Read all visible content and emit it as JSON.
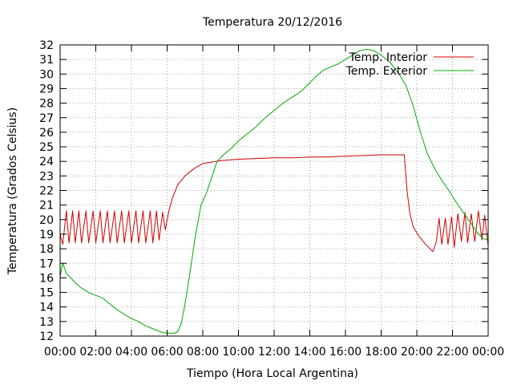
{
  "chart_data": {
    "type": "line",
    "title": "Temperatura 20/12/2016",
    "xlabel": "Tiempo (Hora Local Argentina)",
    "ylabel": "Temperatura (Grados Celsius)",
    "xlim": [
      0,
      24
    ],
    "ylim": [
      12,
      32
    ],
    "x_ticks": [
      "00:00",
      "02:00",
      "04:00",
      "06:00",
      "08:00",
      "10:00",
      "12:00",
      "14:00",
      "16:00",
      "18:00",
      "20:00",
      "22:00",
      "00:00"
    ],
    "y_ticks": [
      12,
      13,
      14,
      15,
      16,
      17,
      18,
      19,
      20,
      21,
      22,
      23,
      24,
      25,
      26,
      27,
      28,
      29,
      30,
      31,
      32
    ],
    "grid": true,
    "legend_position": "top-right",
    "series": [
      {
        "name": "Temp. Interior",
        "color": "#cc0000",
        "points": [
          [
            0.0,
            19.0
          ],
          [
            0.15,
            18.3
          ],
          [
            0.35,
            20.6
          ],
          [
            0.5,
            18.4
          ],
          [
            0.7,
            20.6
          ],
          [
            0.85,
            18.4
          ],
          [
            1.05,
            20.6
          ],
          [
            1.2,
            18.4
          ],
          [
            1.45,
            20.6
          ],
          [
            1.6,
            18.4
          ],
          [
            1.85,
            20.6
          ],
          [
            2.0,
            18.4
          ],
          [
            2.25,
            20.6
          ],
          [
            2.4,
            18.4
          ],
          [
            2.65,
            20.6
          ],
          [
            2.8,
            18.4
          ],
          [
            3.05,
            20.6
          ],
          [
            3.2,
            18.4
          ],
          [
            3.45,
            20.6
          ],
          [
            3.6,
            18.4
          ],
          [
            3.85,
            20.6
          ],
          [
            4.0,
            18.4
          ],
          [
            4.25,
            20.6
          ],
          [
            4.4,
            18.4
          ],
          [
            4.65,
            20.6
          ],
          [
            4.8,
            18.4
          ],
          [
            5.05,
            20.6
          ],
          [
            5.2,
            18.4
          ],
          [
            5.4,
            20.6
          ],
          [
            5.55,
            18.6
          ],
          [
            5.75,
            20.5
          ],
          [
            5.9,
            19.3
          ],
          [
            6.1,
            20.6
          ],
          [
            6.3,
            21.5
          ],
          [
            6.6,
            22.4
          ],
          [
            7.0,
            23.0
          ],
          [
            7.5,
            23.5
          ],
          [
            8.0,
            23.85
          ],
          [
            9.0,
            24.05
          ],
          [
            10.0,
            24.15
          ],
          [
            11.0,
            24.2
          ],
          [
            12.0,
            24.25
          ],
          [
            13.0,
            24.25
          ],
          [
            14.0,
            24.3
          ],
          [
            15.0,
            24.3
          ],
          [
            16.0,
            24.35
          ],
          [
            17.0,
            24.4
          ],
          [
            18.0,
            24.45
          ],
          [
            19.3,
            24.45
          ],
          [
            19.45,
            22.0
          ],
          [
            19.6,
            20.5
          ],
          [
            19.8,
            19.5
          ],
          [
            20.1,
            18.9
          ],
          [
            20.5,
            18.3
          ],
          [
            20.9,
            17.8
          ],
          [
            21.1,
            18.5
          ],
          [
            21.25,
            20.1
          ],
          [
            21.4,
            18.3
          ],
          [
            21.6,
            20.1
          ],
          [
            21.75,
            18.3
          ],
          [
            21.95,
            20.2
          ],
          [
            22.1,
            18.1
          ],
          [
            22.3,
            20.4
          ],
          [
            22.5,
            18.5
          ],
          [
            22.7,
            20.5
          ],
          [
            22.85,
            18.4
          ],
          [
            23.05,
            20.4
          ],
          [
            23.25,
            18.5
          ],
          [
            23.45,
            20.6
          ],
          [
            23.65,
            18.6
          ],
          [
            23.8,
            20.3
          ],
          [
            24.0,
            18.2
          ]
        ]
      },
      {
        "name": "Temp. Exterior",
        "color": "#00aa00",
        "points": [
          [
            0.0,
            16.1
          ],
          [
            0.15,
            17.0
          ],
          [
            0.35,
            16.3
          ],
          [
            0.6,
            16.0
          ],
          [
            0.9,
            15.6
          ],
          [
            1.2,
            15.3
          ],
          [
            1.6,
            15.0
          ],
          [
            2.0,
            14.8
          ],
          [
            2.4,
            14.6
          ],
          [
            2.8,
            14.2
          ],
          [
            3.2,
            13.8
          ],
          [
            3.6,
            13.5
          ],
          [
            4.0,
            13.2
          ],
          [
            4.4,
            13.0
          ],
          [
            4.8,
            12.7
          ],
          [
            5.2,
            12.5
          ],
          [
            5.6,
            12.3
          ],
          [
            6.0,
            12.2
          ],
          [
            6.4,
            12.2
          ],
          [
            6.6,
            12.3
          ],
          [
            6.8,
            12.9
          ],
          [
            7.0,
            14.2
          ],
          [
            7.3,
            16.5
          ],
          [
            7.6,
            19.0
          ],
          [
            7.9,
            21.0
          ],
          [
            8.2,
            21.8
          ],
          [
            8.5,
            22.9
          ],
          [
            8.8,
            24.0
          ],
          [
            9.2,
            24.5
          ],
          [
            9.6,
            24.9
          ],
          [
            10.0,
            25.4
          ],
          [
            10.5,
            25.9
          ],
          [
            11.0,
            26.4
          ],
          [
            11.5,
            27.0
          ],
          [
            12.0,
            27.5
          ],
          [
            12.5,
            28.0
          ],
          [
            13.0,
            28.4
          ],
          [
            13.5,
            28.8
          ],
          [
            14.0,
            29.4
          ],
          [
            14.4,
            29.9
          ],
          [
            14.8,
            30.3
          ],
          [
            15.2,
            30.5
          ],
          [
            15.6,
            30.7
          ],
          [
            16.0,
            31.0
          ],
          [
            16.4,
            31.3
          ],
          [
            16.8,
            31.6
          ],
          [
            17.2,
            31.7
          ],
          [
            17.6,
            31.6
          ],
          [
            18.0,
            31.3
          ],
          [
            18.5,
            30.8
          ],
          [
            19.0,
            30.0
          ],
          [
            19.4,
            29.2
          ],
          [
            19.8,
            27.8
          ],
          [
            20.2,
            26.0
          ],
          [
            20.6,
            24.5
          ],
          [
            21.0,
            23.5
          ],
          [
            21.4,
            22.7
          ],
          [
            21.8,
            22.0
          ],
          [
            22.2,
            21.2
          ],
          [
            22.6,
            20.5
          ],
          [
            23.0,
            19.8
          ],
          [
            23.4,
            19.1
          ],
          [
            23.7,
            18.7
          ],
          [
            24.0,
            18.6
          ]
        ]
      }
    ]
  }
}
